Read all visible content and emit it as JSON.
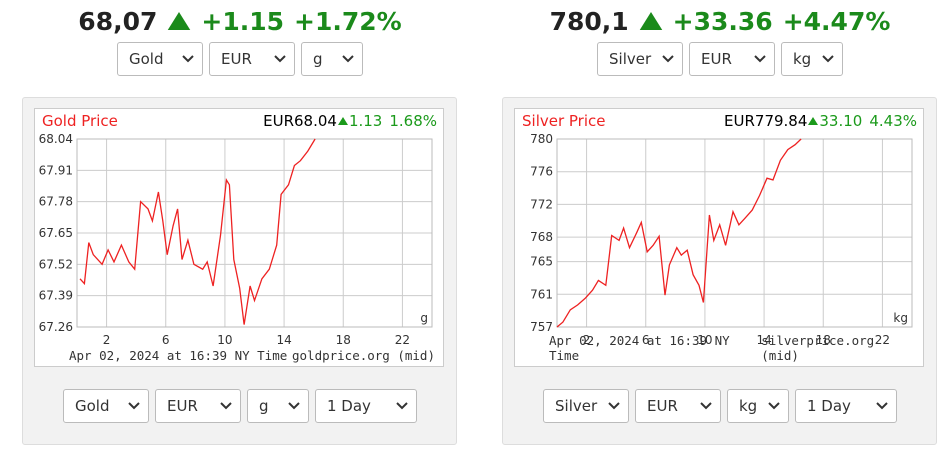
{
  "widgets": [
    {
      "price": "68,07",
      "change": "+1.15",
      "change_pct": "+1.72%",
      "top_selects": [
        "Gold",
        "EUR",
        "g"
      ],
      "bottom_selects": [
        "Gold",
        "EUR",
        "g",
        "1 Day"
      ]
    },
    {
      "price": "780,1",
      "change": "+33.36",
      "change_pct": "+4.47%",
      "top_selects": [
        "Silver",
        "EUR",
        "kg"
      ],
      "bottom_selects": [
        "Silver",
        "EUR",
        "kg",
        "1 Day"
      ]
    }
  ],
  "chart_data": [
    {
      "type": "line",
      "title": "Gold Price",
      "price": "EUR68.04",
      "change": "1.13",
      "change_pct": "1.68%",
      "unit": "g",
      "footnote": "Apr 02, 2024 at 16:39 NY Time",
      "source": "goldprice.org (mid)",
      "color": "#ee2222",
      "grid": true,
      "x": [
        0.2,
        0.5,
        0.8,
        1.1,
        1.7,
        2.1,
        2.5,
        3.0,
        3.5,
        3.9,
        4.3,
        4.8,
        5.1,
        5.5,
        5.8,
        6.1,
        6.5,
        6.8,
        7.1,
        7.5,
        7.9,
        8.5,
        8.8,
        9.2,
        9.7,
        10.1,
        10.3,
        10.6,
        11.0,
        11.3,
        11.7,
        12.0,
        12.5,
        13.0,
        13.5,
        13.8,
        14.3,
        14.7,
        15.1,
        15.6,
        16.1
      ],
      "values": [
        67.46,
        67.44,
        67.61,
        67.56,
        67.52,
        67.58,
        67.53,
        67.6,
        67.53,
        67.5,
        67.78,
        67.75,
        67.7,
        67.82,
        67.7,
        67.56,
        67.68,
        67.75,
        67.54,
        67.62,
        67.52,
        67.5,
        67.53,
        67.43,
        67.64,
        67.87,
        67.85,
        67.54,
        67.42,
        67.27,
        67.43,
        67.37,
        67.46,
        67.5,
        67.6,
        67.81,
        67.85,
        67.93,
        67.95,
        67.99,
        68.04
      ],
      "xlim": [
        0,
        24
      ],
      "xticks": [
        2,
        6,
        10,
        14,
        18,
        22
      ],
      "ylim": [
        67.26,
        68.04
      ],
      "yticks": [
        67.26,
        67.39,
        67.52,
        67.65,
        67.78,
        67.91,
        68.04
      ]
    },
    {
      "type": "line",
      "title": "Silver Price",
      "price": "EUR779.84",
      "change": "33.10",
      "change_pct": "4.43%",
      "unit": "kg",
      "footnote": "Apr 02, 2024 at 16:39 NY Time",
      "source": "silverprice.org (mid)",
      "color": "#ee2222",
      "grid": true,
      "x": [
        0.0,
        0.4,
        0.9,
        1.4,
        1.9,
        2.4,
        2.8,
        3.3,
        3.7,
        4.2,
        4.5,
        4.9,
        5.4,
        5.7,
        6.1,
        6.5,
        6.9,
        7.3,
        7.6,
        8.1,
        8.4,
        8.8,
        9.2,
        9.6,
        9.9,
        10.3,
        10.6,
        11.0,
        11.4,
        11.9,
        12.3,
        12.7,
        13.2,
        13.7,
        14.2,
        14.6,
        15.1,
        15.6,
        16.1,
        16.5
      ],
      "values": [
        757.0,
        757.6,
        759.1,
        759.7,
        760.5,
        761.5,
        762.7,
        762.1,
        768.2,
        767.6,
        769.1,
        766.7,
        768.6,
        769.8,
        766.2,
        767.0,
        768.1,
        760.9,
        764.6,
        766.7,
        765.8,
        766.4,
        763.4,
        762.1,
        760.0,
        770.7,
        767.6,
        769.5,
        767.0,
        771.1,
        769.5,
        770.3,
        771.3,
        773.1,
        775.2,
        775.0,
        777.4,
        778.7,
        779.3,
        780.0
      ],
      "xlim": [
        0,
        24
      ],
      "xticks": [
        2,
        6,
        10,
        14,
        18,
        22
      ],
      "ylim": [
        757,
        780
      ],
      "yticks": [
        757,
        761,
        765,
        768,
        772,
        776,
        780
      ]
    }
  ]
}
